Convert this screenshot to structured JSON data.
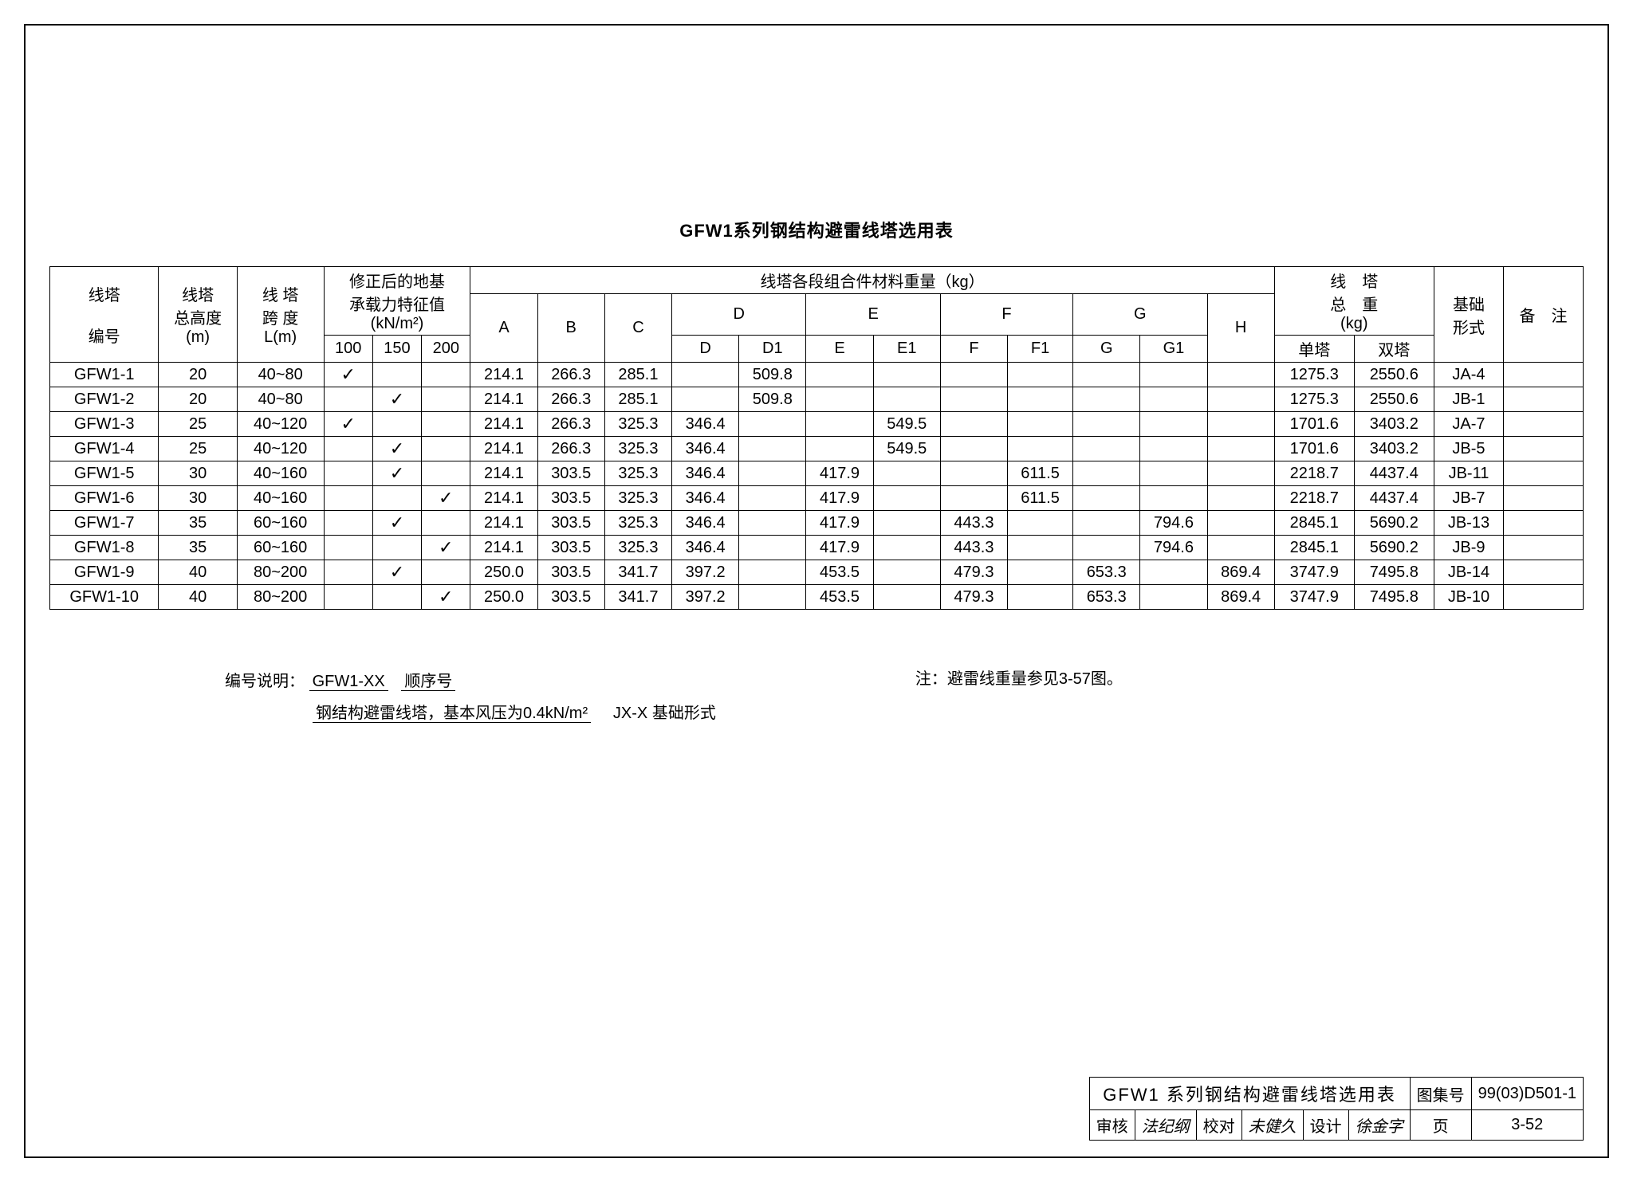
{
  "title": "GFW1系列钢结构避雷线塔选用表",
  "headers": {
    "col1": "线塔\n编号",
    "col2": "线塔\n总高度\n(m)",
    "col3": "线 塔\n跨 度\nL(m)",
    "col4": "修正后的地基\n承载力特征值\n(kN/m²)",
    "col4_sub": [
      "100",
      "150",
      "200"
    ],
    "weight_group": "线塔各段组合件材料重量（kg）",
    "weight_cols": [
      "A",
      "B",
      "C",
      "D",
      "E",
      "F",
      "G",
      "H"
    ],
    "d_sub": [
      "D",
      "D1"
    ],
    "e_sub": [
      "E",
      "E1"
    ],
    "f_sub": [
      "F",
      "F1"
    ],
    "g_sub": [
      "G",
      "G1"
    ],
    "total_label": "线　塔\n总　重\n(kg)",
    "total_sub": [
      "单塔",
      "双塔"
    ],
    "foundation": "基础\n形式",
    "remark": "备　注"
  },
  "rows": [
    {
      "id": "GFW1-1",
      "h": "20",
      "span": "40~80",
      "c100": "✓",
      "c150": "",
      "c200": "",
      "A": "214.1",
      "B": "266.3",
      "C": "285.1",
      "D": "",
      "D1": "509.8",
      "E": "",
      "E1": "",
      "F": "",
      "F1": "",
      "G": "",
      "G1": "",
      "H": "",
      "single": "1275.3",
      "double": "2550.6",
      "found": "JA-4",
      "rem": ""
    },
    {
      "id": "GFW1-2",
      "h": "20",
      "span": "40~80",
      "c100": "",
      "c150": "✓",
      "c200": "",
      "A": "214.1",
      "B": "266.3",
      "C": "285.1",
      "D": "",
      "D1": "509.8",
      "E": "",
      "E1": "",
      "F": "",
      "F1": "",
      "G": "",
      "G1": "",
      "H": "",
      "single": "1275.3",
      "double": "2550.6",
      "found": "JB-1",
      "rem": ""
    },
    {
      "id": "GFW1-3",
      "h": "25",
      "span": "40~120",
      "c100": "✓",
      "c150": "",
      "c200": "",
      "A": "214.1",
      "B": "266.3",
      "C": "325.3",
      "D": "346.4",
      "D1": "",
      "E": "",
      "E1": "549.5",
      "F": "",
      "F1": "",
      "G": "",
      "G1": "",
      "H": "",
      "single": "1701.6",
      "double": "3403.2",
      "found": "JA-7",
      "rem": ""
    },
    {
      "id": "GFW1-4",
      "h": "25",
      "span": "40~120",
      "c100": "",
      "c150": "✓",
      "c200": "",
      "A": "214.1",
      "B": "266.3",
      "C": "325.3",
      "D": "346.4",
      "D1": "",
      "E": "",
      "E1": "549.5",
      "F": "",
      "F1": "",
      "G": "",
      "G1": "",
      "H": "",
      "single": "1701.6",
      "double": "3403.2",
      "found": "JB-5",
      "rem": ""
    },
    {
      "id": "GFW1-5",
      "h": "30",
      "span": "40~160",
      "c100": "",
      "c150": "✓",
      "c200": "",
      "A": "214.1",
      "B": "303.5",
      "C": "325.3",
      "D": "346.4",
      "D1": "",
      "E": "417.9",
      "E1": "",
      "F": "",
      "F1": "611.5",
      "G": "",
      "G1": "",
      "H": "",
      "single": "2218.7",
      "double": "4437.4",
      "found": "JB-11",
      "rem": ""
    },
    {
      "id": "GFW1-6",
      "h": "30",
      "span": "40~160",
      "c100": "",
      "c150": "",
      "c200": "✓",
      "A": "214.1",
      "B": "303.5",
      "C": "325.3",
      "D": "346.4",
      "D1": "",
      "E": "417.9",
      "E1": "",
      "F": "",
      "F1": "611.5",
      "G": "",
      "G1": "",
      "H": "",
      "single": "2218.7",
      "double": "4437.4",
      "found": "JB-7",
      "rem": ""
    },
    {
      "id": "GFW1-7",
      "h": "35",
      "span": "60~160",
      "c100": "",
      "c150": "✓",
      "c200": "",
      "A": "214.1",
      "B": "303.5",
      "C": "325.3",
      "D": "346.4",
      "D1": "",
      "E": "417.9",
      "E1": "",
      "F": "443.3",
      "F1": "",
      "G": "",
      "G1": "794.6",
      "H": "",
      "single": "2845.1",
      "double": "5690.2",
      "found": "JB-13",
      "rem": ""
    },
    {
      "id": "GFW1-8",
      "h": "35",
      "span": "60~160",
      "c100": "",
      "c150": "",
      "c200": "✓",
      "A": "214.1",
      "B": "303.5",
      "C": "325.3",
      "D": "346.4",
      "D1": "",
      "E": "417.9",
      "E1": "",
      "F": "443.3",
      "F1": "",
      "G": "",
      "G1": "794.6",
      "H": "",
      "single": "2845.1",
      "double": "5690.2",
      "found": "JB-9",
      "rem": ""
    },
    {
      "id": "GFW1-9",
      "h": "40",
      "span": "80~200",
      "c100": "",
      "c150": "✓",
      "c200": "",
      "A": "250.0",
      "B": "303.5",
      "C": "341.7",
      "D": "397.2",
      "D1": "",
      "E": "453.5",
      "E1": "",
      "F": "479.3",
      "F1": "",
      "G": "653.3",
      "G1": "",
      "H": "869.4",
      "single": "3747.9",
      "double": "7495.8",
      "found": "JB-14",
      "rem": ""
    },
    {
      "id": "GFW1-10",
      "h": "40",
      "span": "80~200",
      "c100": "",
      "c150": "",
      "c200": "✓",
      "A": "250.0",
      "B": "303.5",
      "C": "341.7",
      "D": "397.2",
      "D1": "",
      "E": "453.5",
      "E1": "",
      "F": "479.3",
      "F1": "",
      "G": "653.3",
      "G1": "",
      "H": "869.4",
      "single": "3747.9",
      "double": "7495.8",
      "found": "JB-10",
      "rem": ""
    }
  ],
  "notes": {
    "label_left": "编号说明：",
    "code": "GFW1-XX",
    "seq": "顺序号",
    "desc": "钢结构避雷线塔，基本风压为0.4kN/m²",
    "jx": "JX-X 基础形式",
    "right": "注：避雷线重量参见3-57图。"
  },
  "titleblock": {
    "name": "GFW1 系列钢结构避雷线塔选用表",
    "atlas_label": "图集号",
    "atlas": "99(03)D501-1",
    "审核_l": "审核",
    "审核_v": "法纪纲",
    "校对_l": "校对",
    "校对_v": "未健久",
    "设计_l": "设计",
    "设计_v": "徐金字",
    "page_l": "页",
    "page_v": "3-52"
  }
}
